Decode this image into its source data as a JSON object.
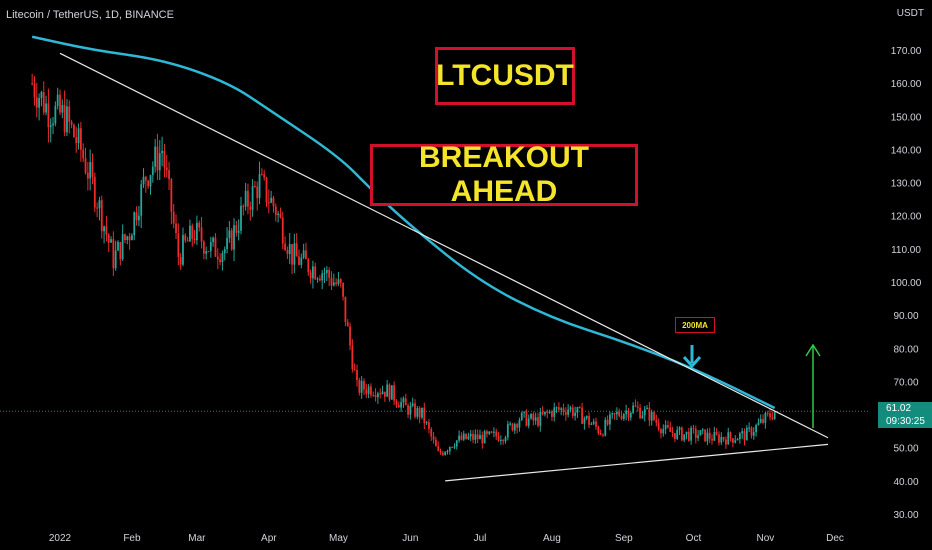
{
  "header": {
    "symbol": "Litecoin / TetherUS, 1D, BINANCE",
    "currency": "USDT"
  },
  "annotations": {
    "title": "LTCUSDT",
    "subtitle": "BREAKOUT AHEAD",
    "ma_label": "200MA"
  },
  "price_label": {
    "price": "61.02",
    "countdown": "09:30:25"
  },
  "colors": {
    "up": "#26a69a",
    "down": "#ef2b2b",
    "ma": "#2fb8d6",
    "trendline": "#e8e8e8",
    "annotation_border": "#d3102b",
    "annotation_text": "#f5e52a",
    "arrow_up": "#2ecc40",
    "arrow_down": "#2fb8d6",
    "price_label_bg": "#138c7e"
  },
  "chart_data": {
    "type": "candlestick",
    "y_ticks": [
      "170.00",
      "160.00",
      "150.00",
      "140.00",
      "130.00",
      "120.00",
      "110.00",
      "100.00",
      "90.00",
      "80.00",
      "70.00",
      "60.00",
      "50.00",
      "40.00",
      "30.00"
    ],
    "x_ticks": [
      "2022",
      "Feb",
      "Mar",
      "Apr",
      "May",
      "Jun",
      "Jul",
      "Aug",
      "Sep",
      "Oct",
      "Nov",
      "Dec"
    ],
    "ylim": [
      27,
      180
    ],
    "last_price": 61.02,
    "price_path": [
      [
        "2021-12-20",
        160
      ],
      [
        "2021-12-27",
        152
      ],
      [
        "2022-01-03",
        150
      ],
      [
        "2022-01-10",
        140
      ],
      [
        "2022-01-17",
        125
      ],
      [
        "2022-01-24",
        107
      ],
      [
        "2022-01-31",
        115
      ],
      [
        "2022-02-07",
        132
      ],
      [
        "2022-02-14",
        140
      ],
      [
        "2022-02-21",
        108
      ],
      [
        "2022-02-28",
        115
      ],
      [
        "2022-03-07",
        110
      ],
      [
        "2022-03-14",
        110
      ],
      [
        "2022-03-21",
        122
      ],
      [
        "2022-03-28",
        130
      ],
      [
        "2022-04-04",
        122
      ],
      [
        "2022-04-11",
        108
      ],
      [
        "2022-04-18",
        105
      ],
      [
        "2022-04-25",
        103
      ],
      [
        "2022-05-02",
        98
      ],
      [
        "2022-05-09",
        68
      ],
      [
        "2022-05-16",
        68
      ],
      [
        "2022-05-23",
        67
      ],
      [
        "2022-05-30",
        62
      ],
      [
        "2022-06-06",
        60
      ],
      [
        "2022-06-13",
        48
      ],
      [
        "2022-06-20",
        52
      ],
      [
        "2022-06-27",
        53
      ],
      [
        "2022-07-04",
        53
      ],
      [
        "2022-07-11",
        54
      ],
      [
        "2022-07-18",
        59
      ],
      [
        "2022-07-25",
        58
      ],
      [
        "2022-08-01",
        61
      ],
      [
        "2022-08-08",
        62
      ],
      [
        "2022-08-15",
        59
      ],
      [
        "2022-08-22",
        55
      ],
      [
        "2022-08-29",
        60
      ],
      [
        "2022-09-05",
        62
      ],
      [
        "2022-09-12",
        60
      ],
      [
        "2022-09-19",
        55
      ],
      [
        "2022-09-26",
        54
      ],
      [
        "2022-10-03",
        54
      ],
      [
        "2022-10-10",
        53
      ],
      [
        "2022-10-17",
        53
      ],
      [
        "2022-10-24",
        54
      ],
      [
        "2022-10-31",
        58
      ],
      [
        "2022-11-05",
        61
      ]
    ],
    "moving_average_200": [
      [
        "2021-12-20",
        174
      ],
      [
        "2022-01-15",
        170
      ],
      [
        "2022-02-15",
        167
      ],
      [
        "2022-03-15",
        160
      ],
      [
        "2022-04-01",
        152
      ],
      [
        "2022-05-01",
        138
      ],
      [
        "2022-05-15",
        128
      ],
      [
        "2022-06-01",
        117
      ],
      [
        "2022-07-01",
        100
      ],
      [
        "2022-08-01",
        89
      ],
      [
        "2022-09-01",
        82
      ],
      [
        "2022-10-01",
        74
      ],
      [
        "2022-11-05",
        62
      ]
    ],
    "trendlines": [
      {
        "from": [
          "2022-01-01",
          169
        ],
        "to": [
          "2022-11-28",
          53
        ]
      },
      {
        "from": [
          "2022-06-16",
          40
        ],
        "to": [
          "2022-11-28",
          51
        ]
      }
    ]
  }
}
